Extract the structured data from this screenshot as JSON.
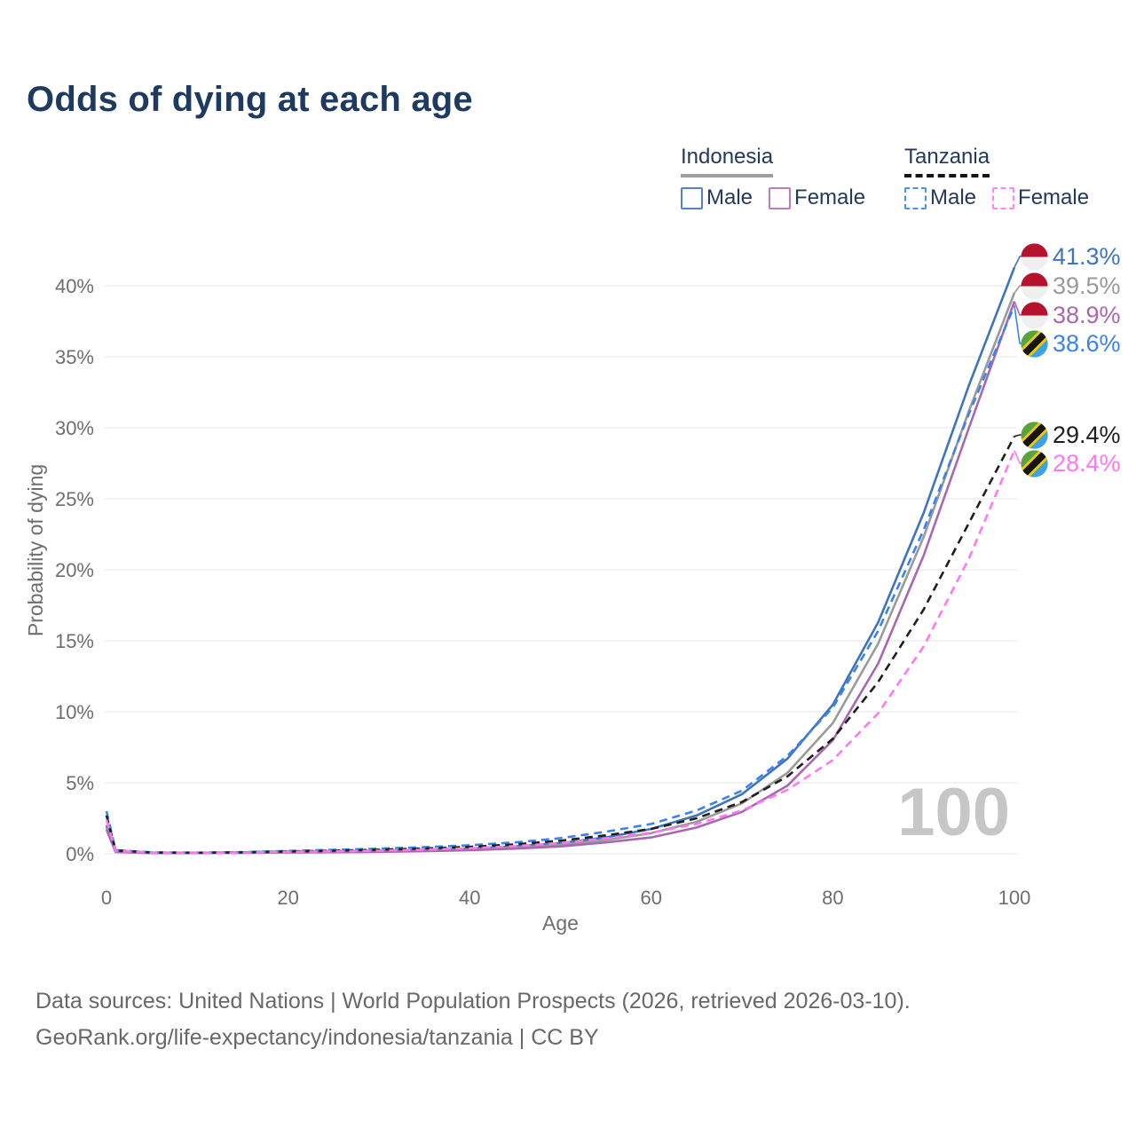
{
  "title": "Odds of dying at each age",
  "legend": {
    "groups": [
      {
        "country": "Indonesia",
        "line": {
          "style": "solid",
          "color": "#9e9e9e"
        },
        "items": [
          {
            "label": "Male",
            "color": "#5583c2",
            "dashed": false
          },
          {
            "label": "Female",
            "color": "#bf7cbd",
            "dashed": false
          }
        ]
      },
      {
        "country": "Tanzania",
        "line": {
          "style": "dashed",
          "color": "#141414"
        },
        "items": [
          {
            "label": "Male",
            "color": "#4a90ee",
            "dashed": true
          },
          {
            "label": "Female",
            "color": "#ff85f2",
            "dashed": true
          }
        ]
      }
    ]
  },
  "chart_data": {
    "type": "line",
    "title": "Odds of dying at each age",
    "xlabel": "Age",
    "ylabel": "Probability of dying",
    "xlim": [
      0,
      100
    ],
    "ylim": [
      0,
      43
    ],
    "x_ticks": [
      0,
      20,
      40,
      60,
      80,
      100
    ],
    "y_ticks": [
      {
        "value": 0,
        "label": "0%"
      },
      {
        "value": 5,
        "label": "5%"
      },
      {
        "value": 10,
        "label": "10%"
      },
      {
        "value": 15,
        "label": "15%"
      },
      {
        "value": 20,
        "label": "20%"
      },
      {
        "value": 25,
        "label": "25%"
      },
      {
        "value": 30,
        "label": "30%"
      },
      {
        "value": 35,
        "label": "35%"
      },
      {
        "value": 40,
        "label": "40%"
      }
    ],
    "grid": "horizontal",
    "legend_position": "top-right",
    "watermark": "100",
    "x": [
      0,
      1,
      5,
      10,
      15,
      20,
      25,
      30,
      35,
      40,
      45,
      50,
      55,
      60,
      65,
      70,
      75,
      80,
      85,
      90,
      95,
      100
    ],
    "series": [
      {
        "name": "Indonesia male",
        "country": "Indonesia",
        "flag": "indonesia",
        "color": "#3e74bd",
        "dashed": false,
        "end_label": "41.3%",
        "end_value": 41.3,
        "values": [
          2.0,
          0.15,
          0.07,
          0.07,
          0.1,
          0.15,
          0.18,
          0.21,
          0.27,
          0.36,
          0.52,
          0.75,
          1.15,
          1.75,
          2.7,
          4.2,
          6.7,
          10.5,
          16.3,
          24.0,
          33.0,
          41.3
        ]
      },
      {
        "name": "Indonesia total",
        "country": "Indonesia",
        "flag": "indonesia",
        "color": "#9a9a9a",
        "dashed": false,
        "end_label": "39.5%",
        "end_value": 39.5,
        "values": [
          1.85,
          0.14,
          0.06,
          0.06,
          0.08,
          0.12,
          0.14,
          0.17,
          0.22,
          0.3,
          0.44,
          0.63,
          0.97,
          1.45,
          2.25,
          3.55,
          5.7,
          9.2,
          14.8,
          22.3,
          31.2,
          39.5
        ]
      },
      {
        "name": "Indonesia female",
        "country": "Indonesia",
        "flag": "indonesia",
        "color": "#a868b0",
        "dashed": false,
        "end_label": "38.9%",
        "end_value": 38.9,
        "values": [
          1.7,
          0.13,
          0.05,
          0.05,
          0.07,
          0.09,
          0.11,
          0.14,
          0.18,
          0.25,
          0.36,
          0.52,
          0.8,
          1.15,
          1.85,
          2.95,
          4.8,
          8.0,
          13.4,
          21.0,
          30.0,
          38.9
        ]
      },
      {
        "name": "Tanzania male",
        "country": "Tanzania",
        "flag": "tanzania",
        "color": "#3c82ec",
        "dashed": true,
        "end_label": "38.6%",
        "end_value": 38.6,
        "values": [
          3.0,
          0.26,
          0.1,
          0.08,
          0.12,
          0.2,
          0.28,
          0.36,
          0.46,
          0.6,
          0.8,
          1.1,
          1.55,
          2.1,
          3.05,
          4.45,
          6.9,
          10.3,
          15.7,
          22.8,
          31.0,
          38.6
        ]
      },
      {
        "name": "Tanzania total",
        "country": "Tanzania",
        "flag": "tanzania",
        "color": "#1f1f1f",
        "dashed": true,
        "end_label": "29.4%",
        "end_value": 29.4,
        "values": [
          2.7,
          0.23,
          0.09,
          0.07,
          0.1,
          0.16,
          0.22,
          0.29,
          0.37,
          0.49,
          0.66,
          0.92,
          1.3,
          1.75,
          2.5,
          3.65,
          5.45,
          8.1,
          12.1,
          17.2,
          23.3,
          29.4
        ]
      },
      {
        "name": "Tanzania female",
        "country": "Tanzania",
        "flag": "tanzania",
        "color": "#ff78f0",
        "dashed": true,
        "end_label": "28.4%",
        "end_value": 28.4,
        "values": [
          2.4,
          0.2,
          0.08,
          0.06,
          0.09,
          0.13,
          0.17,
          0.22,
          0.29,
          0.39,
          0.54,
          0.76,
          1.08,
          1.48,
          2.1,
          3.05,
          4.5,
          6.6,
          9.9,
          14.6,
          20.8,
          28.4
        ]
      }
    ]
  },
  "flag_colors": {
    "indonesia": {
      "top": "#b5122d",
      "bottom": "#efefef"
    },
    "tanzania": {
      "green": "#57a33f",
      "blue": "#3da1e8",
      "band": "#151515",
      "band_edge": "#f2ca00"
    }
  },
  "footer": {
    "line1": "Data sources: United Nations | World Population Prospects (2026, retrieved 2026-03-10).",
    "line2": "GeoRank.org/life-expectancy/indonesia/tanzania | CC BY"
  }
}
